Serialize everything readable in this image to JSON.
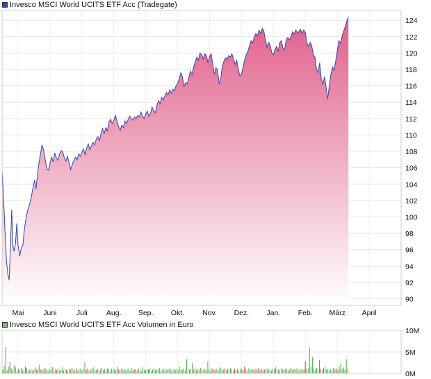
{
  "chart_data": [
    {
      "type": "area",
      "title": "Invesco MSCI World UCITS ETF Acc (Tradegate)",
      "series_color": "#3344aa",
      "fill_top_color": "#e0608a",
      "legend_swatch_color": "#2c4fa8",
      "y_ticks": [
        "124",
        "122",
        "120",
        "118",
        "116",
        "114",
        "112",
        "110",
        "108",
        "106",
        "104",
        "102",
        "100",
        "98",
        "96",
        "94",
        "92",
        "90"
      ],
      "ylim": [
        89.2,
        125.2
      ],
      "x_labels": [
        "Mai",
        "Juni",
        "Juli",
        "Aug.",
        "Sep.",
        "Okt.",
        "Nov.",
        "Dez.",
        "Jan.",
        "Feb.",
        "März",
        "April"
      ],
      "x_label_positions": [
        0.5,
        1.5,
        2.5,
        3.5,
        4.5,
        5.5,
        6.5,
        7.5,
        8.5,
        9.5,
        10.5,
        11.5
      ],
      "x_domain": [
        0,
        12.5
      ],
      "grid": true,
      "points": [
        [
          0.0,
          105.8
        ],
        [
          0.05,
          102.0
        ],
        [
          0.1,
          97.5
        ],
        [
          0.14,
          94.5
        ],
        [
          0.18,
          93.0
        ],
        [
          0.22,
          92.3
        ],
        [
          0.26,
          96.0
        ],
        [
          0.3,
          100.9
        ],
        [
          0.34,
          96.5
        ],
        [
          0.38,
          95.8
        ],
        [
          0.42,
          96.8
        ],
        [
          0.46,
          99.2
        ],
        [
          0.5,
          96.5
        ],
        [
          0.55,
          95.2
        ],
        [
          0.6,
          96.2
        ],
        [
          0.65,
          96.5
        ],
        [
          0.7,
          98.5
        ],
        [
          0.75,
          99.8
        ],
        [
          0.8,
          100.8
        ],
        [
          0.86,
          101.5
        ],
        [
          0.92,
          102.5
        ],
        [
          0.97,
          103.6
        ],
        [
          1.02,
          104.5
        ],
        [
          1.06,
          103.4
        ],
        [
          1.1,
          104.8
        ],
        [
          1.15,
          106.5
        ],
        [
          1.2,
          107.6
        ],
        [
          1.25,
          108.8
        ],
        [
          1.3,
          108.2
        ],
        [
          1.35,
          107.0
        ],
        [
          1.4,
          105.8
        ],
        [
          1.45,
          105.7
        ],
        [
          1.5,
          106.5
        ],
        [
          1.55,
          107.3
        ],
        [
          1.6,
          106.7
        ],
        [
          1.65,
          107.8
        ],
        [
          1.7,
          107.2
        ],
        [
          1.75,
          106.9
        ],
        [
          1.8,
          107.7
        ],
        [
          1.85,
          108.1
        ],
        [
          1.9,
          108.0
        ],
        [
          1.95,
          107.2
        ],
        [
          2.0,
          106.8
        ],
        [
          2.05,
          107.4
        ],
        [
          2.1,
          106.6
        ],
        [
          2.15,
          105.8
        ],
        [
          2.2,
          106.4
        ],
        [
          2.25,
          106.9
        ],
        [
          2.3,
          107.3
        ],
        [
          2.35,
          107.0
        ],
        [
          2.4,
          107.7
        ],
        [
          2.45,
          107.4
        ],
        [
          2.5,
          107.9
        ],
        [
          2.55,
          108.3
        ],
        [
          2.6,
          107.6
        ],
        [
          2.65,
          108.4
        ],
        [
          2.7,
          108.9
        ],
        [
          2.75,
          108.2
        ],
        [
          2.8,
          108.7
        ],
        [
          2.85,
          109.1
        ],
        [
          2.9,
          108.8
        ],
        [
          2.95,
          109.5
        ],
        [
          3.0,
          109.8
        ],
        [
          3.05,
          109.3
        ],
        [
          3.1,
          110.2
        ],
        [
          3.15,
          110.8
        ],
        [
          3.2,
          110.2
        ],
        [
          3.25,
          110.9
        ],
        [
          3.3,
          110.5
        ],
        [
          3.35,
          111.6
        ],
        [
          3.4,
          111.9
        ],
        [
          3.45,
          111.4
        ],
        [
          3.5,
          111.8
        ],
        [
          3.55,
          112.4
        ],
        [
          3.6,
          111.7
        ],
        [
          3.65,
          111.0
        ],
        [
          3.7,
          110.6
        ],
        [
          3.75,
          111.2
        ],
        [
          3.8,
          110.9
        ],
        [
          3.85,
          111.7
        ],
        [
          3.9,
          111.4
        ],
        [
          3.95,
          111.9
        ],
        [
          4.0,
          112.3
        ],
        [
          4.05,
          112.0
        ],
        [
          4.1,
          111.8
        ],
        [
          4.15,
          112.2
        ],
        [
          4.2,
          112.0
        ],
        [
          4.25,
          112.4
        ],
        [
          4.3,
          112.2
        ],
        [
          4.35,
          112.8
        ],
        [
          4.4,
          112.3
        ],
        [
          4.45,
          112.0
        ],
        [
          4.5,
          112.6
        ],
        [
          4.55,
          112.9
        ],
        [
          4.6,
          112.3
        ],
        [
          4.65,
          112.6
        ],
        [
          4.7,
          113.4
        ],
        [
          4.75,
          113.0
        ],
        [
          4.8,
          112.7
        ],
        [
          4.85,
          113.6
        ],
        [
          4.9,
          114.2
        ],
        [
          4.95,
          113.8
        ],
        [
          5.0,
          114.6
        ],
        [
          5.05,
          114.3
        ],
        [
          5.1,
          114.8
        ],
        [
          5.15,
          115.2
        ],
        [
          5.2,
          114.9
        ],
        [
          5.25,
          115.5
        ],
        [
          5.3,
          115.1
        ],
        [
          5.35,
          115.6
        ],
        [
          5.4,
          115.4
        ],
        [
          5.45,
          116.0
        ],
        [
          5.5,
          116.3
        ],
        [
          5.55,
          116.9
        ],
        [
          5.6,
          117.6
        ],
        [
          5.65,
          117.1
        ],
        [
          5.7,
          115.9
        ],
        [
          5.75,
          116.4
        ],
        [
          5.8,
          116.2
        ],
        [
          5.85,
          117.0
        ],
        [
          5.9,
          117.8
        ],
        [
          5.95,
          117.4
        ],
        [
          6.0,
          118.3
        ],
        [
          6.05,
          118.9
        ],
        [
          6.1,
          119.5
        ],
        [
          6.15,
          119.1
        ],
        [
          6.2,
          120.0
        ],
        [
          6.25,
          119.8
        ],
        [
          6.3,
          119.3
        ],
        [
          6.35,
          119.9
        ],
        [
          6.4,
          119.7
        ],
        [
          6.45,
          118.8
        ],
        [
          6.5,
          119.6
        ],
        [
          6.55,
          119.9
        ],
        [
          6.6,
          118.6
        ],
        [
          6.65,
          117.4
        ],
        [
          6.7,
          118.2
        ],
        [
          6.75,
          117.9
        ],
        [
          6.8,
          116.2
        ],
        [
          6.85,
          116.9
        ],
        [
          6.9,
          118.4
        ],
        [
          6.95,
          119.0
        ],
        [
          7.0,
          119.4
        ],
        [
          7.05,
          119.2
        ],
        [
          7.1,
          119.7
        ],
        [
          7.15,
          119.5
        ],
        [
          7.2,
          119.9
        ],
        [
          7.25,
          119.3
        ],
        [
          7.3,
          118.6
        ],
        [
          7.35,
          119.1
        ],
        [
          7.4,
          118.0
        ],
        [
          7.45,
          117.2
        ],
        [
          7.5,
          117.4
        ],
        [
          7.55,
          118.3
        ],
        [
          7.6,
          119.2
        ],
        [
          7.65,
          119.8
        ],
        [
          7.7,
          120.2
        ],
        [
          7.75,
          120.9
        ],
        [
          7.8,
          121.5
        ],
        [
          7.85,
          121.2
        ],
        [
          7.9,
          122.0
        ],
        [
          7.95,
          122.4
        ],
        [
          8.0,
          122.1
        ],
        [
          8.05,
          122.8
        ],
        [
          8.1,
          122.4
        ],
        [
          8.15,
          123.0
        ],
        [
          8.2,
          122.7
        ],
        [
          8.25,
          121.6
        ],
        [
          8.3,
          120.7
        ],
        [
          8.35,
          121.3
        ],
        [
          8.4,
          120.9
        ],
        [
          8.45,
          120.0
        ],
        [
          8.5,
          119.8
        ],
        [
          8.55,
          120.4
        ],
        [
          8.6,
          120.8
        ],
        [
          8.65,
          120.2
        ],
        [
          8.7,
          121.3
        ],
        [
          8.75,
          121.5
        ],
        [
          8.8,
          120.6
        ],
        [
          8.85,
          120.4
        ],
        [
          8.9,
          121.6
        ],
        [
          8.95,
          121.9
        ],
        [
          9.0,
          121.6
        ],
        [
          9.05,
          122.0
        ],
        [
          9.1,
          122.6
        ],
        [
          9.15,
          122.3
        ],
        [
          9.2,
          122.8
        ],
        [
          9.25,
          122.5
        ],
        [
          9.3,
          122.6
        ],
        [
          9.35,
          122.9
        ],
        [
          9.4,
          122.4
        ],
        [
          9.45,
          122.8
        ],
        [
          9.5,
          122.5
        ],
        [
          9.55,
          121.2
        ],
        [
          9.6,
          120.8
        ],
        [
          9.65,
          121.3
        ],
        [
          9.7,
          120.9
        ],
        [
          9.75,
          119.8
        ],
        [
          9.8,
          119.5
        ],
        [
          9.85,
          118.0
        ],
        [
          9.9,
          117.6
        ],
        [
          9.95,
          118.8
        ],
        [
          10.0,
          116.8
        ],
        [
          10.05,
          116.2
        ],
        [
          10.1,
          117.1
        ],
        [
          10.15,
          115.8
        ],
        [
          10.2,
          114.4
        ],
        [
          10.25,
          116.0
        ],
        [
          10.3,
          117.4
        ],
        [
          10.35,
          118.3
        ],
        [
          10.4,
          117.9
        ],
        [
          10.45,
          119.0
        ],
        [
          10.5,
          120.3
        ],
        [
          10.55,
          121.5
        ],
        [
          10.6,
          121.2
        ],
        [
          10.65,
          122.0
        ],
        [
          10.7,
          122.7
        ],
        [
          10.75,
          123.2
        ],
        [
          10.8,
          123.9
        ],
        [
          10.85,
          124.4
        ]
      ]
    },
    {
      "type": "bar",
      "title": "Invesco MSCI World UCITS ETF Acc Volumen in Euro",
      "legend_swatch_color": "#6fc06f",
      "up_color": "#45b045",
      "down_color": "#d04040",
      "y_ticks": [
        "10M",
        "5M",
        "0M"
      ],
      "ylim": [
        0,
        10
      ],
      "unit": "M",
      "x_domain": [
        0,
        12.5
      ],
      "grid": true,
      "values": [
        0.9,
        1.8,
        6.1,
        0.7,
        1.5,
        2.6,
        1.2,
        0.8,
        1.9,
        1.4,
        0.6,
        1.1,
        0.9,
        1.3,
        0.7,
        1.0,
        1.6,
        1.2,
        0.5,
        0.8,
        1.1,
        0.6,
        0.9,
        1.4,
        0.8,
        1.2,
        2.1,
        0.9,
        0.7,
        1.0,
        1.3,
        0.8,
        0.6,
        1.1,
        0.9,
        1.5,
        0.7,
        1.0,
        0.8,
        1.2,
        0.6,
        0.9,
        1.4,
        0.7,
        1.1,
        0.8,
        0.6,
        1.0,
        0.9,
        1.3,
        0.7,
        0.8,
        1.2,
        0.6,
        1.0,
        1.1,
        0.7,
        0.9,
        2.7,
        0.8,
        1.2,
        0.6,
        0.9,
        1.0,
        1.4,
        0.7,
        0.8,
        1.1,
        0.6,
        0.9,
        1.3,
        0.8,
        1.0,
        0.7,
        1.2,
        0.9,
        0.6,
        1.1,
        0.8,
        1.0,
        0.7,
        1.5,
        0.9,
        0.6,
        1.2,
        0.8,
        1.0,
        0.7,
        0.9,
        1.1,
        0.6,
        1.3,
        0.8,
        0.9,
        1.0,
        0.7,
        1.2,
        0.8,
        0.6,
        1.4,
        0.9,
        0.7,
        1.0,
        0.8,
        1.1,
        0.6,
        0.9,
        1.2,
        0.7,
        1.0,
        0.8,
        1.3,
        0.6,
        0.9,
        1.1,
        0.7,
        1.0,
        0.8,
        1.2,
        0.9,
        0.6,
        1.1,
        0.8,
        1.0,
        0.7,
        1.6,
        0.9,
        0.8,
        1.2,
        0.7,
        3.3,
        1.1,
        0.8,
        1.0,
        2.4,
        0.9,
        1.2,
        0.7,
        1.0,
        0.8,
        1.3,
        0.9,
        0.6,
        1.1,
        0.8,
        2.8,
        1.0,
        0.7,
        1.2,
        0.9,
        0.8,
        1.1,
        0.7,
        1.0,
        1.4,
        0.8,
        0.9,
        1.2,
        0.7,
        1.0,
        0.8,
        1.3,
        0.9,
        0.6,
        1.1,
        0.8,
        1.0,
        0.7,
        1.2,
        0.9,
        0.8,
        1.6,
        1.0,
        0.7,
        1.2,
        0.9,
        0.8,
        1.1,
        0.7,
        1.0,
        0.9,
        1.3,
        0.8,
        1.1,
        0.7,
        1.0,
        0.9,
        1.2,
        0.8,
        1.0,
        0.7,
        1.1,
        0.9,
        1.4,
        0.8,
        1.0,
        0.7,
        1.2,
        0.9,
        0.8,
        1.1,
        1.0,
        0.7,
        0.9,
        1.3,
        0.8,
        1.0,
        0.9,
        1.2,
        0.7,
        1.1,
        0.8,
        1.0,
        0.9,
        2.8,
        1.0,
        1.2,
        6.0,
        1.5,
        3.8,
        1.0,
        0.8,
        1.3,
        0.9,
        3.1,
        1.0,
        0.7,
        1.2,
        1.6,
        0.9,
        1.1,
        0.8,
        1.0,
        0.7,
        1.3,
        0.9,
        1.1,
        0.8,
        1.5,
        2.2,
        1.0,
        1.4,
        0.9,
        3.3,
        1.2
      ]
    }
  ]
}
